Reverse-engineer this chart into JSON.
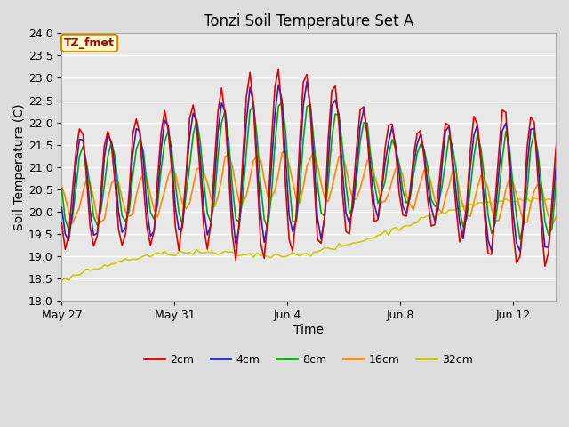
{
  "title": "Tonzi Soil Temperature Set A",
  "xlabel": "Time",
  "ylabel": "Soil Temperature (C)",
  "ylim": [
    18.0,
    24.0
  ],
  "yticks": [
    18.0,
    18.5,
    19.0,
    19.5,
    20.0,
    20.5,
    21.0,
    21.5,
    22.0,
    22.5,
    23.0,
    23.5,
    24.0
  ],
  "xtick_labels": [
    "May 27",
    "May 31",
    "Jun 4",
    "Jun 8",
    "Jun 12"
  ],
  "xtick_positions": [
    0,
    4,
    8,
    12,
    16
  ],
  "series_labels": [
    "2cm",
    "4cm",
    "8cm",
    "16cm",
    "32cm"
  ],
  "series_colors": [
    "#dd0000",
    "#2222cc",
    "#00aa00",
    "#ff8800",
    "#cccc00"
  ],
  "annotation_label": "TZ_fmet",
  "annotation_bg": "#ffffcc",
  "annotation_fg": "#aa0000",
  "annotation_border": "#cc8800",
  "fig_bg": "#dddddd",
  "plot_bg": "#e8e8e8",
  "grid_color": "#ffffff",
  "title_fontsize": 12,
  "axis_fontsize": 9,
  "label_fontsize": 10
}
